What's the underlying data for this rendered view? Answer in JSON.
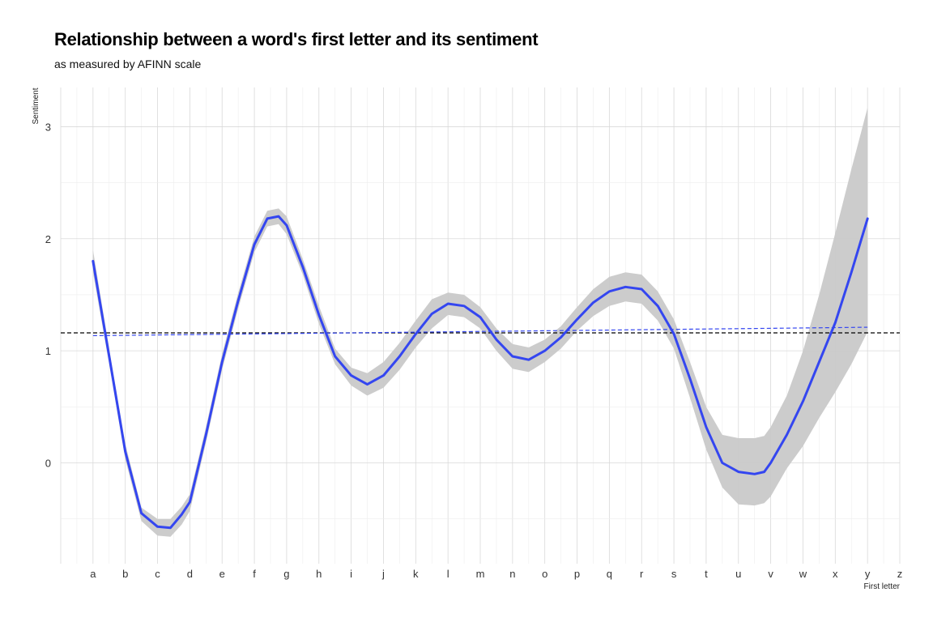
{
  "chart_data": {
    "type": "line",
    "title": "Relationship between a word's first letter and its sentiment",
    "subtitle": "as measured by AFINN scale",
    "xlabel": "First letter",
    "ylabel": "Sentiment",
    "categories": [
      "a",
      "b",
      "c",
      "d",
      "e",
      "f",
      "g",
      "h",
      "i",
      "j",
      "k",
      "l",
      "m",
      "n",
      "o",
      "p",
      "q",
      "r",
      "s",
      "t",
      "u",
      "v",
      "w",
      "x",
      "y",
      "z"
    ],
    "yticks": [
      0,
      1,
      2,
      3
    ],
    "ylim": [
      -0.9,
      3.35
    ],
    "xlim": [
      -1,
      25
    ],
    "grid": true,
    "colors": {
      "smooth_line": "#3446f0",
      "ribbon": "#c9c9c9",
      "mean_line": "#000000",
      "linear_fit": "#3446f0",
      "grid_major": "#d9d9d9",
      "grid_minor": "#eeeeee"
    },
    "smooth": {
      "x": [
        0,
        0.5,
        1,
        1.5,
        2,
        2.4,
        2.75,
        3,
        3.5,
        4,
        4.5,
        5,
        5.4,
        5.75,
        6,
        6.5,
        7,
        7.5,
        8,
        8.5,
        9,
        9.5,
        10,
        10.5,
        11,
        11.5,
        12,
        12.5,
        13,
        13.5,
        14,
        14.5,
        15,
        15.5,
        16,
        16.5,
        17,
        17.5,
        18,
        18.5,
        19,
        19.5,
        20,
        20.5,
        20.8,
        21,
        21.5,
        22,
        22.5,
        23,
        23.5,
        24
      ],
      "y": [
        1.8,
        0.95,
        0.1,
        -0.45,
        -0.57,
        -0.58,
        -0.46,
        -0.35,
        0.25,
        0.9,
        1.45,
        1.95,
        2.18,
        2.2,
        2.12,
        1.75,
        1.32,
        0.95,
        0.78,
        0.7,
        0.78,
        0.95,
        1.15,
        1.33,
        1.42,
        1.4,
        1.3,
        1.1,
        0.95,
        0.92,
        1.0,
        1.12,
        1.28,
        1.43,
        1.53,
        1.57,
        1.55,
        1.4,
        1.15,
        0.75,
        0.32,
        0.0,
        -0.08,
        -0.1,
        -0.08,
        0.0,
        0.25,
        0.55,
        0.9,
        1.25,
        1.7,
        2.18
      ],
      "upper": [
        1.9,
        1.02,
        0.17,
        -0.4,
        -0.5,
        -0.5,
        -0.39,
        -0.28,
        0.32,
        0.97,
        1.52,
        2.02,
        2.25,
        2.27,
        2.2,
        1.82,
        1.4,
        1.02,
        0.85,
        0.8,
        0.9,
        1.07,
        1.27,
        1.46,
        1.52,
        1.5,
        1.39,
        1.2,
        1.06,
        1.03,
        1.1,
        1.22,
        1.39,
        1.55,
        1.66,
        1.7,
        1.68,
        1.53,
        1.28,
        0.9,
        0.5,
        0.25,
        0.22,
        0.22,
        0.24,
        0.32,
        0.6,
        1.0,
        1.5,
        2.05,
        2.62,
        3.17
      ],
      "lower": [
        1.7,
        0.88,
        0.03,
        -0.52,
        -0.65,
        -0.66,
        -0.55,
        -0.43,
        0.18,
        0.83,
        1.38,
        1.88,
        2.11,
        2.13,
        2.04,
        1.68,
        1.24,
        0.88,
        0.69,
        0.6,
        0.67,
        0.83,
        1.03,
        1.2,
        1.32,
        1.3,
        1.2,
        1.0,
        0.84,
        0.81,
        0.9,
        1.02,
        1.18,
        1.31,
        1.4,
        1.44,
        1.42,
        1.27,
        1.02,
        0.58,
        0.12,
        -0.22,
        -0.37,
        -0.38,
        -0.36,
        -0.3,
        -0.05,
        0.15,
        0.4,
        0.63,
        0.88,
        1.17
      ]
    },
    "mean_line_y": 1.16,
    "linear_fit": {
      "x": [
        0,
        24
      ],
      "y": [
        1.135,
        1.21
      ]
    }
  }
}
